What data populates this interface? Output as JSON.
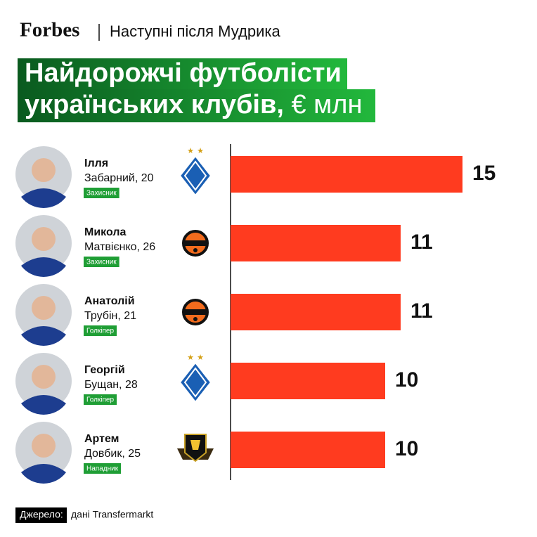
{
  "chart_data": {
    "type": "bar",
    "orientation": "horizontal",
    "brand": "Forbes",
    "subtitle": "Наступні після Мудрика",
    "title_lines": [
      "Найдорожчі футболісти",
      "українських клубів,"
    ],
    "unit": "€ млн",
    "players": [
      {
        "name_lines": [
          "Ілля",
          "Забарний, 20"
        ],
        "position": "Захисник"
      },
      {
        "name_lines": [
          "Микола",
          "Матвієнко, 26"
        ],
        "position": "Захисник"
      },
      {
        "name_lines": [
          "Анатолій",
          "Трубін, 21"
        ],
        "position": "Голкіпер"
      },
      {
        "name_lines": [
          "Георгій",
          "Бущан, 28"
        ],
        "position": "Голкіпер"
      },
      {
        "name_lines": [
          "Артем",
          "Довбик, 25"
        ],
        "position": "Нападник"
      }
    ],
    "values": [
      15,
      11,
      11,
      10,
      10
    ],
    "color": "#ff3b1f",
    "xlim": [
      0,
      15
    ],
    "source_label": "Джерело:",
    "source": "дані Transfermarkt"
  }
}
